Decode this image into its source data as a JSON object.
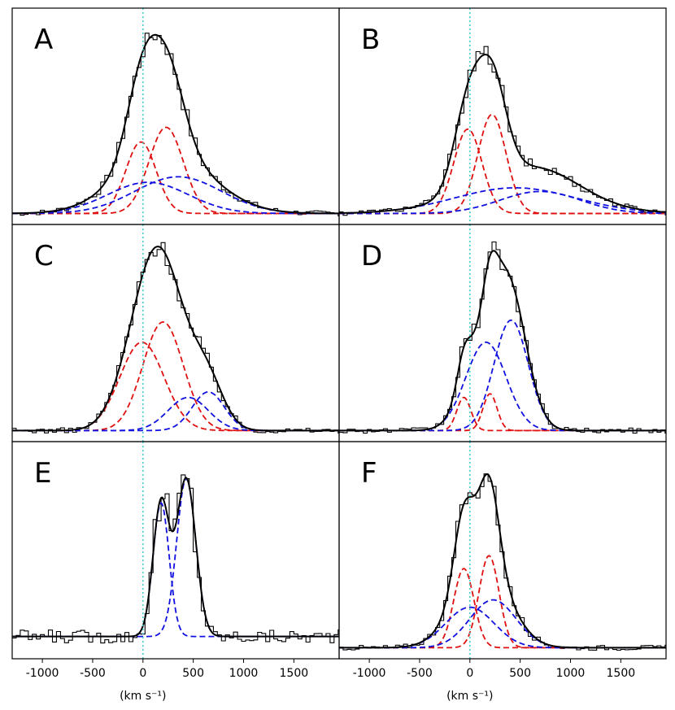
{
  "chart_data": {
    "type": "line",
    "description_style": "histogram spectra with multi-gaussian fits",
    "xlabel": "(km s⁻¹)",
    "xlim": [
      -1300,
      1950
    ],
    "xticks": [
      -1000,
      -500,
      0,
      500,
      1000,
      1500
    ],
    "xtick_labels": [
      "-1000",
      "-500",
      "0",
      "500",
      "1000",
      "1500"
    ],
    "zero_line_color": "#40d0d0",
    "colors": {
      "total": "#000000",
      "narrow": "#e01010",
      "broad": "#1010e0"
    },
    "panels": [
      {
        "id": "A",
        "ylim": [
          -0.06,
          1.12
        ],
        "gaussians": [
          {
            "color": "red",
            "amp": 0.39,
            "mu": -20,
            "sigma": 150
          },
          {
            "color": "red",
            "amp": 0.47,
            "mu": 230,
            "sigma": 170
          },
          {
            "color": "blue",
            "amp": 0.17,
            "mu": 50,
            "sigma": 400
          },
          {
            "color": "blue",
            "amp": 0.2,
            "mu": 350,
            "sigma": 430
          }
        ]
      },
      {
        "id": "B",
        "ylim": [
          -0.06,
          1.12
        ],
        "gaussians": [
          {
            "color": "red",
            "amp": 0.46,
            "mu": -20,
            "sigma": 140
          },
          {
            "color": "red",
            "amp": 0.54,
            "mu": 220,
            "sigma": 140
          },
          {
            "color": "blue",
            "amp": 0.14,
            "mu": 450,
            "sigma": 600
          },
          {
            "color": "blue",
            "amp": 0.12,
            "mu": 700,
            "sigma": 400
          }
        ]
      },
      {
        "id": "C",
        "ylim": [
          -0.06,
          1.12
        ],
        "gaussians": [
          {
            "color": "red",
            "amp": 0.48,
            "mu": -10,
            "sigma": 220
          },
          {
            "color": "red",
            "amp": 0.59,
            "mu": 200,
            "sigma": 200
          },
          {
            "color": "blue",
            "amp": 0.18,
            "mu": 450,
            "sigma": 200
          },
          {
            "color": "blue",
            "amp": 0.21,
            "mu": 650,
            "sigma": 160
          }
        ]
      },
      {
        "id": "D",
        "ylim": [
          -0.06,
          1.12
        ],
        "gaussians": [
          {
            "color": "red",
            "amp": 0.18,
            "mu": -60,
            "sigma": 70
          },
          {
            "color": "red",
            "amp": 0.2,
            "mu": 200,
            "sigma": 70
          },
          {
            "color": "blue",
            "amp": 0.48,
            "mu": 160,
            "sigma": 200
          },
          {
            "color": "blue",
            "amp": 0.6,
            "mu": 410,
            "sigma": 170
          }
        ]
      },
      {
        "id": "E",
        "ylim": [
          -0.12,
          1.05
        ],
        "gaussians": [
          {
            "color": "blue",
            "amp": 0.72,
            "mu": 180,
            "sigma": 80
          },
          {
            "color": "blue",
            "amp": 0.85,
            "mu": 430,
            "sigma": 95
          }
        ]
      },
      {
        "id": "F",
        "ylim": [
          -0.06,
          1.12
        ],
        "gaussians": [
          {
            "color": "red",
            "amp": 0.43,
            "mu": -60,
            "sigma": 100
          },
          {
            "color": "red",
            "amp": 0.5,
            "mu": 190,
            "sigma": 100
          },
          {
            "color": "blue",
            "amp": 0.22,
            "mu": 0,
            "sigma": 240
          },
          {
            "color": "blue",
            "amp": 0.26,
            "mu": 230,
            "sigma": 230
          }
        ]
      }
    ]
  }
}
